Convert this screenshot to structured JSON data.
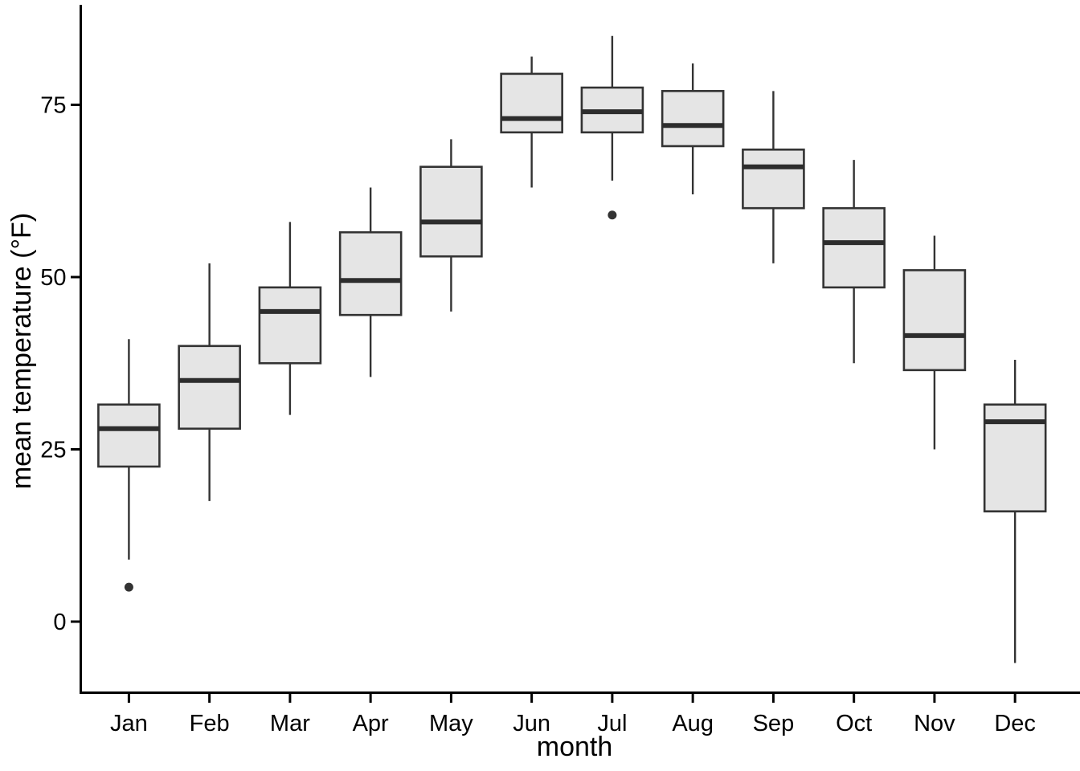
{
  "chart_data": {
    "type": "boxplot",
    "title": "",
    "xlabel": "month",
    "ylabel": "mean temperature (°F)",
    "categories": [
      "Jan",
      "Feb",
      "Mar",
      "Apr",
      "May",
      "Jun",
      "Jul",
      "Aug",
      "Sep",
      "Oct",
      "Nov",
      "Dec"
    ],
    "y_ticks": [
      0,
      25,
      50,
      75
    ],
    "ylim": [
      -10,
      90
    ],
    "grid": "off",
    "legend_position": "none",
    "boxes": [
      {
        "month": "Jan",
        "whisker_low": 9,
        "q1": 22.5,
        "median": 28,
        "q3": 31.5,
        "whisker_high": 41,
        "outliers": [
          5
        ]
      },
      {
        "month": "Feb",
        "whisker_low": 17.5,
        "q1": 28,
        "median": 35,
        "q3": 40,
        "whisker_high": 52,
        "outliers": []
      },
      {
        "month": "Mar",
        "whisker_low": 30,
        "q1": 37.5,
        "median": 45,
        "q3": 48.5,
        "whisker_high": 58,
        "outliers": []
      },
      {
        "month": "Apr",
        "whisker_low": 35.5,
        "q1": 44.5,
        "median": 49.5,
        "q3": 56.5,
        "whisker_high": 63,
        "outliers": []
      },
      {
        "month": "May",
        "whisker_low": 45,
        "q1": 53,
        "median": 58,
        "q3": 66,
        "whisker_high": 70,
        "outliers": []
      },
      {
        "month": "Jun",
        "whisker_low": 63,
        "q1": 71,
        "median": 73,
        "q3": 79.5,
        "whisker_high": 82,
        "outliers": []
      },
      {
        "month": "Jul",
        "whisker_low": 64,
        "q1": 71,
        "median": 74,
        "q3": 77.5,
        "whisker_high": 85,
        "outliers": [
          59
        ]
      },
      {
        "month": "Aug",
        "whisker_low": 62,
        "q1": 69,
        "median": 72,
        "q3": 77,
        "whisker_high": 81,
        "outliers": []
      },
      {
        "month": "Sep",
        "whisker_low": 52,
        "q1": 60,
        "median": 66,
        "q3": 68.5,
        "whisker_high": 77,
        "outliers": []
      },
      {
        "month": "Oct",
        "whisker_low": 37.5,
        "q1": 48.5,
        "median": 55,
        "q3": 60,
        "whisker_high": 67,
        "outliers": []
      },
      {
        "month": "Nov",
        "whisker_low": 25,
        "q1": 36.5,
        "median": 41.5,
        "q3": 51,
        "whisker_high": 56,
        "outliers": []
      },
      {
        "month": "Dec",
        "whisker_low": -6,
        "q1": 16,
        "median": 29,
        "q3": 31.5,
        "whisker_high": 38,
        "outliers": []
      }
    ],
    "colors": {
      "background": "#ffffff",
      "box_fill": "#e5e5e5",
      "box_stroke": "#333333",
      "median": "#2d2d2d",
      "whisker": "#333333",
      "outlier": "#333333",
      "axis": "#000000"
    }
  }
}
